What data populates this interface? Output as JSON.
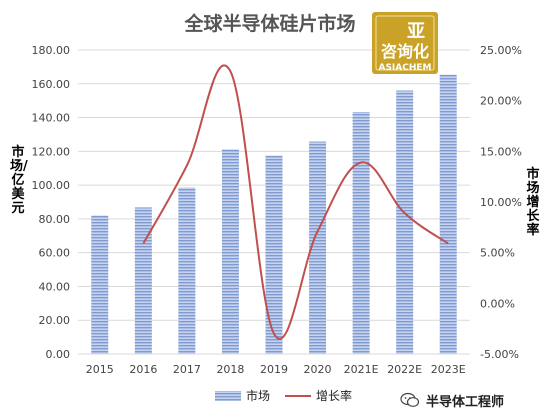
{
  "chart_data": {
    "type": "bar",
    "title": "全球半导体硅片市场",
    "categories": [
      "2015",
      "2016",
      "2017",
      "2018",
      "2019",
      "2020",
      "2021E",
      "2022E",
      "2023E"
    ],
    "series": [
      {
        "name": "市场",
        "kind": "bar",
        "axis": "left",
        "values": [
          82.0,
          86.8,
          98.6,
          121.2,
          117.5,
          125.8,
          143.3,
          156.0,
          165.4
        ],
        "color": "#8fa8d8"
      },
      {
        "name": "增长率",
        "kind": "line",
        "axis": "right",
        "values": [
          null,
          5.9,
          13.6,
          22.9,
          -3.0,
          7.1,
          13.9,
          8.9,
          5.9
        ],
        "color": "#c0504d"
      }
    ],
    "ylabel": "市场/亿美元",
    "y2label": "市场增长率",
    "ylim": [
      0,
      180
    ],
    "y2lim": [
      -5,
      25
    ],
    "yticks": [
      "0.00",
      "20.00",
      "40.00",
      "60.00",
      "80.00",
      "100.00",
      "120.00",
      "140.00",
      "160.00",
      "180.00"
    ],
    "y2ticks": [
      "-5.00%",
      "0.00%",
      "5.00%",
      "10.00%",
      "15.00%",
      "20.00%",
      "25.00%"
    ],
    "grid": "horizontal",
    "legend": "bottom-center"
  },
  "logo": {
    "line1": "亚",
    "line2": "咨询化",
    "brand": "ASIACHEM"
  },
  "watermark": "半导体工程师",
  "colors": {
    "bar_light": "#b9c9ea",
    "bar_dark": "#7f9bd1",
    "line": "#c0504d",
    "grid": "#d9d9d9"
  }
}
